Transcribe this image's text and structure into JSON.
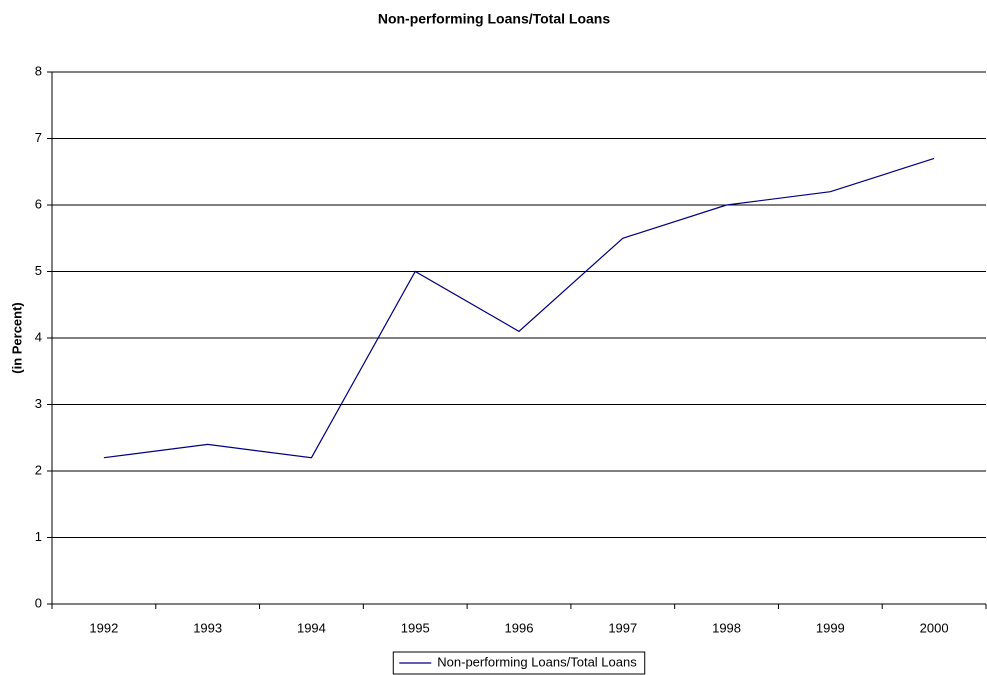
{
  "chart_data": {
    "type": "line",
    "title": "Non-performing Loans/Total Loans",
    "y_label": "(in Percent)",
    "categories": [
      "1992",
      "1993",
      "1994",
      "1995",
      "1996",
      "1997",
      "1998",
      "1999",
      "2000"
    ],
    "series": [
      {
        "name": "Non-performing Loans/Total Loans",
        "color": "#000080",
        "values": [
          2.2,
          2.4,
          2.2,
          5.0,
          4.1,
          5.5,
          6.0,
          6.2,
          6.7
        ]
      }
    ],
    "ylim": [
      0,
      8
    ],
    "yticks": [
      0,
      1,
      2,
      3,
      4,
      5,
      6,
      7,
      8
    ],
    "grid": true,
    "legend": "bottom"
  }
}
